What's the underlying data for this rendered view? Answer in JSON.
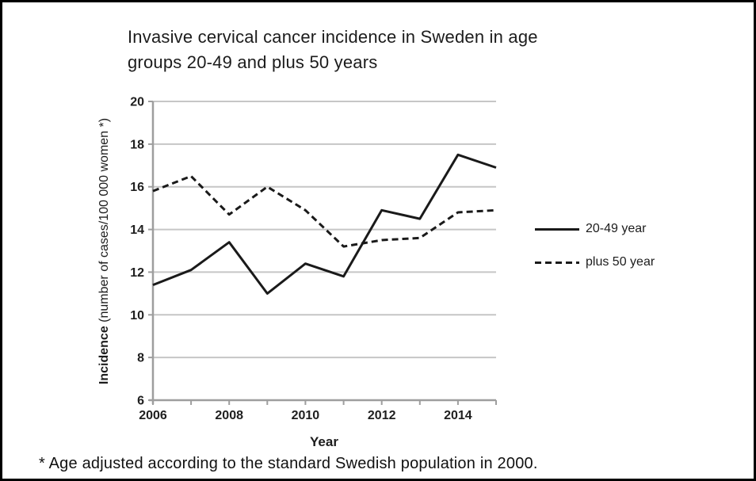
{
  "header": {
    "title_line1": "Invasive cervical cancer incidence in Sweden in age",
    "title_line2": "groups 20-49 and plus 50 years"
  },
  "chart": {
    "x_title": "Year",
    "y_title_bold": "Incidence",
    "y_title_rest": " (number of cases/100 000 women *)"
  },
  "legend": {
    "position": "right",
    "items": [
      {
        "label": "20-49 year",
        "style": "solid"
      },
      {
        "label": "plus 50 year",
        "style": "dashed"
      }
    ]
  },
  "footnote": {
    "text": "* Age adjusted according to the standard Swedish population in 2000."
  },
  "colors": {
    "line": "#1a1a1a",
    "axis": "#9e9e9e",
    "gridline": "#c6c6c6",
    "text": "#1f1f1f",
    "background": "#ffffff",
    "border": "#000000"
  },
  "chart_data": {
    "type": "line",
    "title": "Invasive cervical cancer incidence in Sweden in age groups 20-49 and plus 50 years",
    "xlabel": "Year",
    "ylabel": "Incidence (number of cases/100 000 women *)",
    "x": [
      2006,
      2007,
      2008,
      2009,
      2010,
      2011,
      2012,
      2013,
      2014,
      2015
    ],
    "series": [
      {
        "name": "20-49 year",
        "line_style": "solid",
        "values": [
          11.4,
          12.1,
          13.4,
          11.0,
          12.4,
          11.8,
          14.9,
          14.5,
          17.5,
          16.9
        ]
      },
      {
        "name": "plus 50 year",
        "line_style": "dashed",
        "values": [
          15.8,
          16.5,
          14.7,
          16.0,
          14.9,
          13.2,
          13.5,
          13.6,
          14.8,
          14.9
        ]
      }
    ],
    "ylim": [
      6,
      20
    ],
    "y_ticks": [
      6,
      8,
      10,
      12,
      14,
      16,
      18,
      20
    ],
    "x_tick_labels": [
      2006,
      2008,
      2010,
      2012,
      2014
    ],
    "grid": "horizontal",
    "legend_position": "right"
  }
}
